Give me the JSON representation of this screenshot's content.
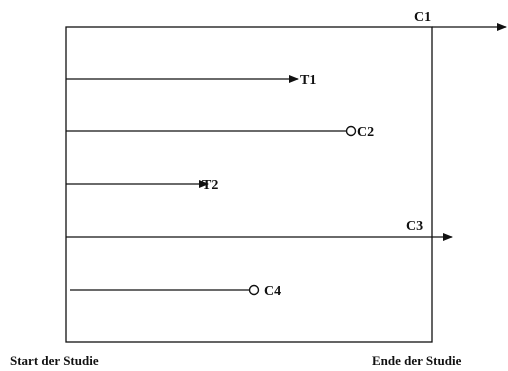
{
  "diagram": {
    "start_label": "Start der Studie",
    "end_label": "Ende der Studie",
    "events": [
      {
        "id": "t1",
        "label": "T1",
        "kind": "arrow"
      },
      {
        "id": "c2",
        "label": "C2",
        "kind": "circle"
      },
      {
        "id": "t2",
        "label": "T2",
        "kind": "arrow"
      },
      {
        "id": "c3",
        "label": "C3",
        "kind": "arrow"
      },
      {
        "id": "c4",
        "label": "C4",
        "kind": "circle"
      },
      {
        "id": "c1",
        "label": "C1",
        "kind": "arrow"
      }
    ]
  }
}
